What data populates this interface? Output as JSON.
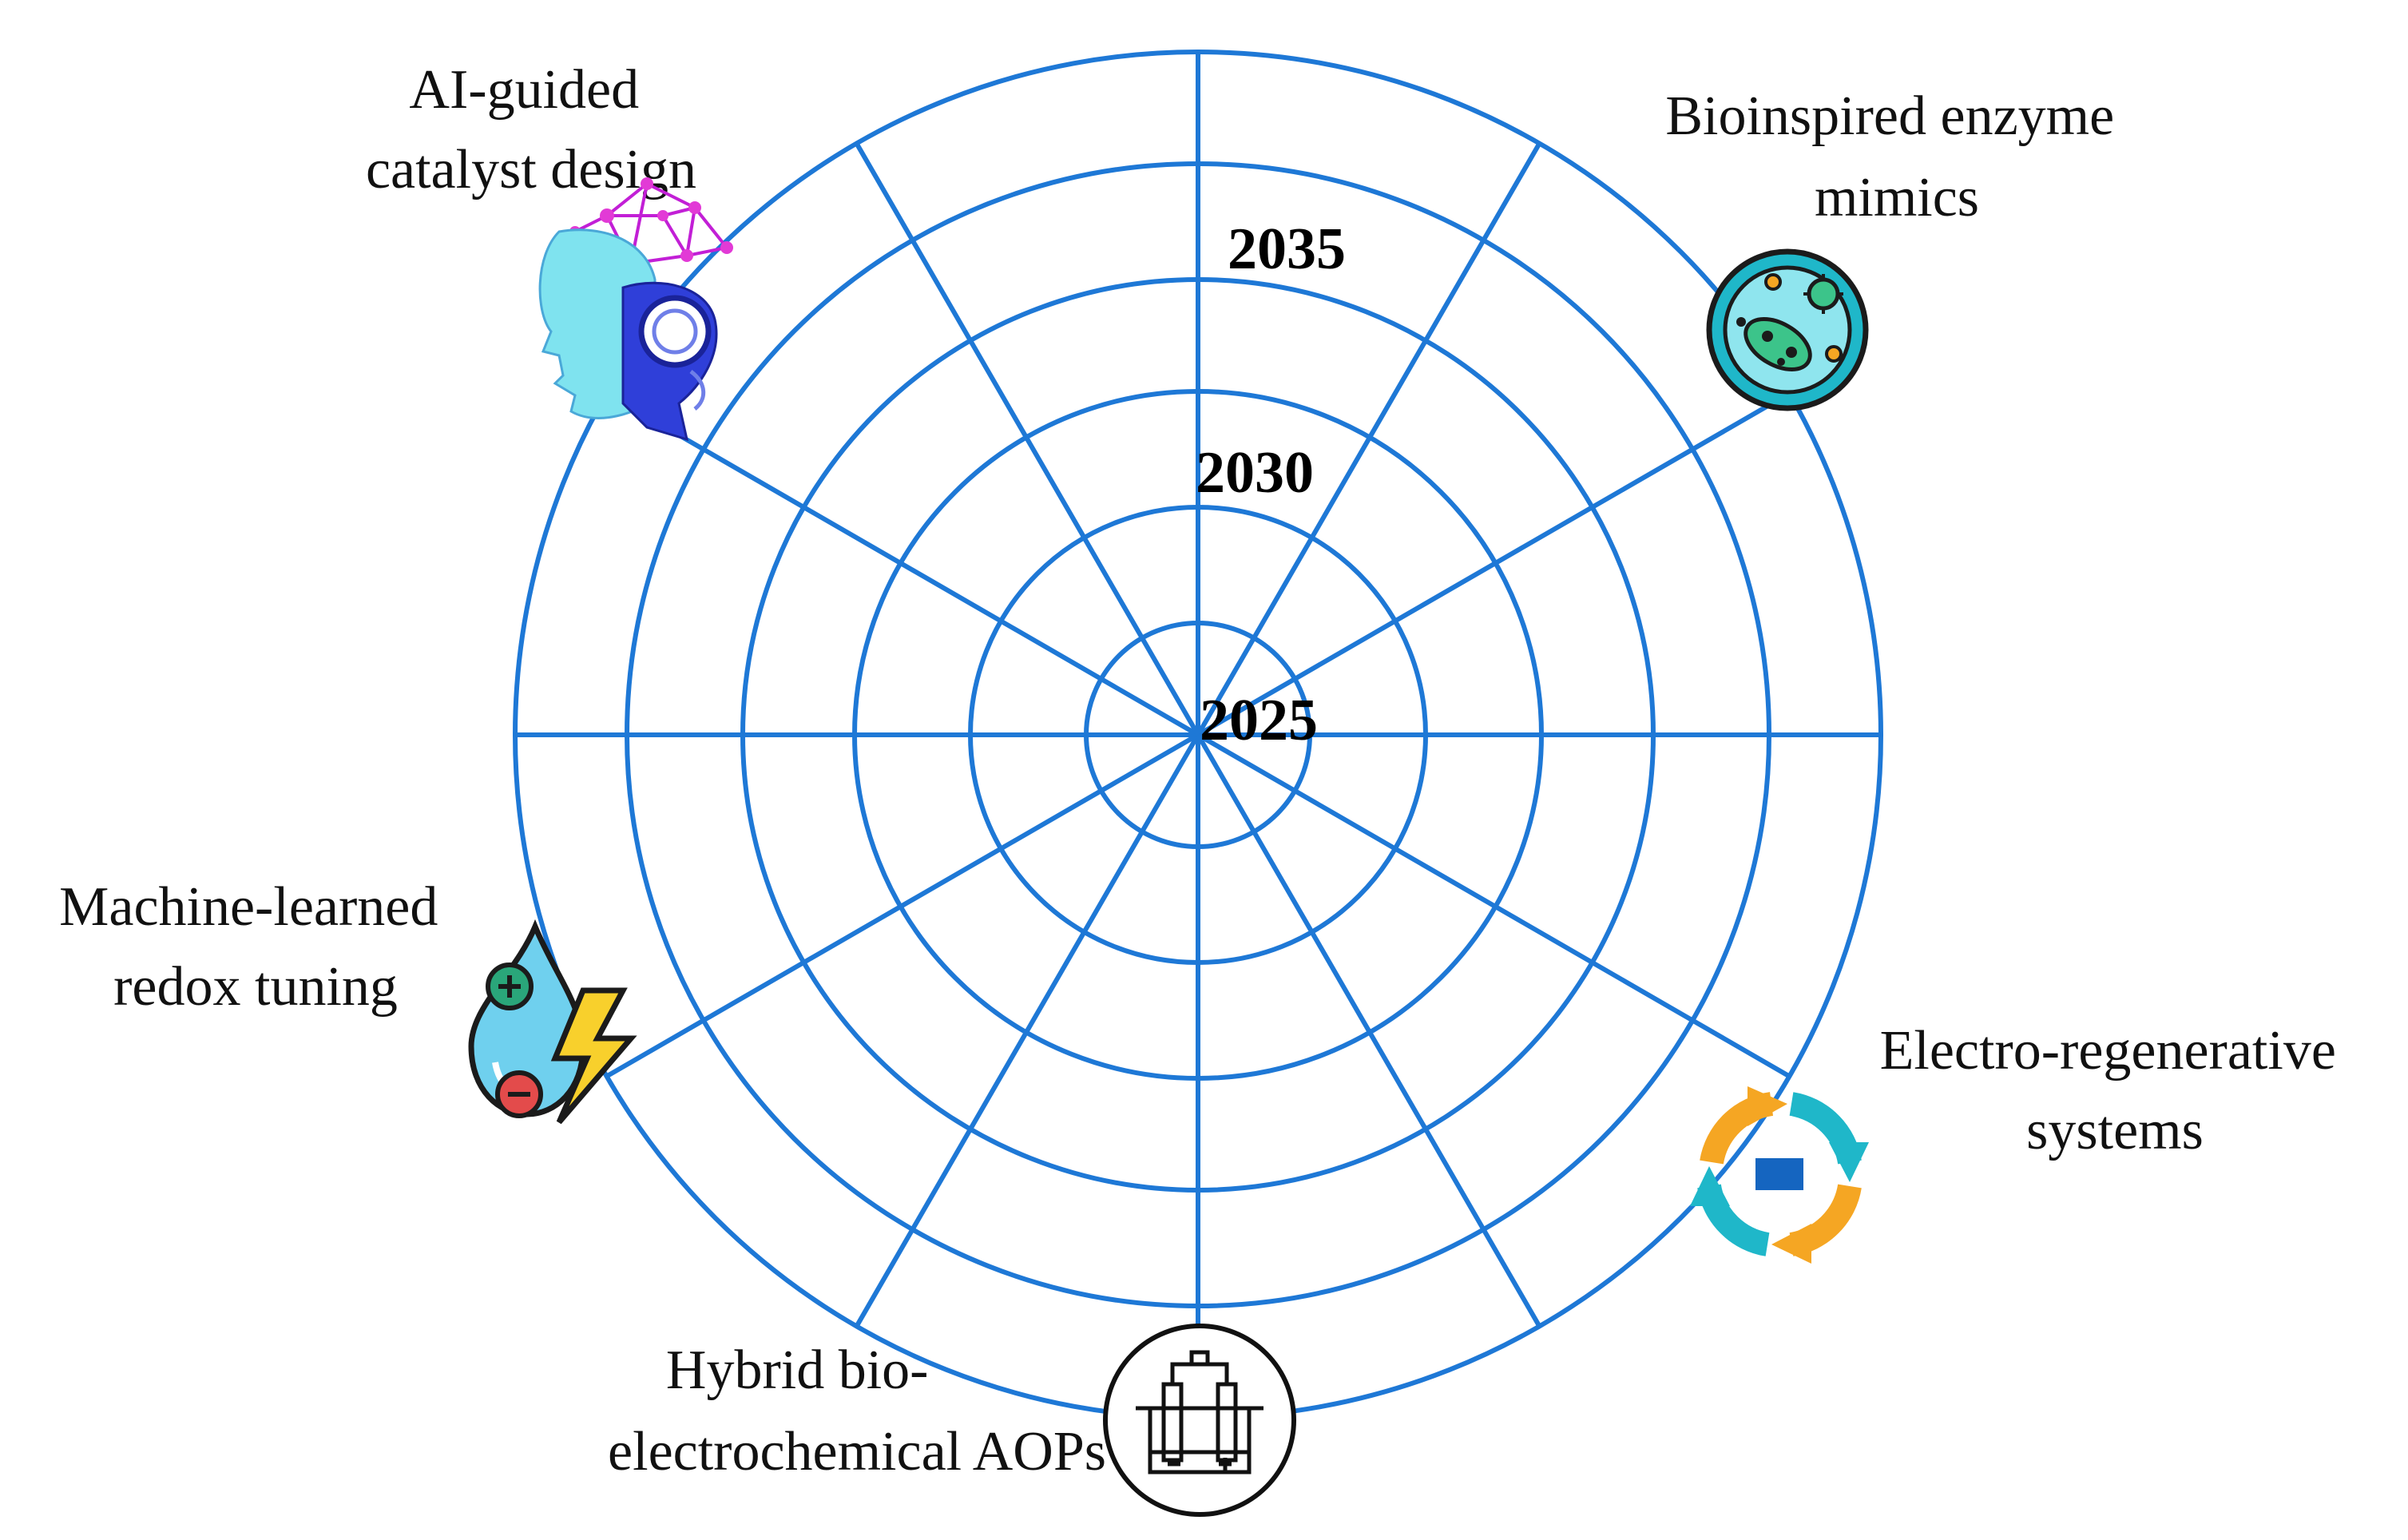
{
  "diagram": {
    "years": [
      "2025",
      "2030",
      "2035"
    ],
    "ring_count": 6,
    "spoke_count": 12,
    "colors": {
      "grid": "#1e78d6",
      "text": "#111111",
      "accent_orange": "#f5a623",
      "accent_teal": "#1fb7c9",
      "accent_blue": "#1565c0"
    },
    "topics": [
      {
        "id": "ai",
        "lines": [
          "AI-guided",
          "catalyst design"
        ],
        "icon": "ai-head-network-icon"
      },
      {
        "id": "bio",
        "lines": [
          "Bioinspired enzyme",
          "mimics"
        ],
        "icon": "petri-dish-microbes-icon"
      },
      {
        "id": "ml",
        "lines": [
          "Machine-learned",
          "redox tuning"
        ],
        "icon": "redox-drop-lightning-icon"
      },
      {
        "id": "electro",
        "lines": [
          "Electro-regenerative",
          "systems"
        ],
        "icon": "regeneration-cycle-icon"
      },
      {
        "id": "hybrid",
        "lines": [
          "Hybrid bio-",
          "electrochemical AOPs"
        ],
        "icon": "electrochemical-cell-icon"
      }
    ]
  }
}
